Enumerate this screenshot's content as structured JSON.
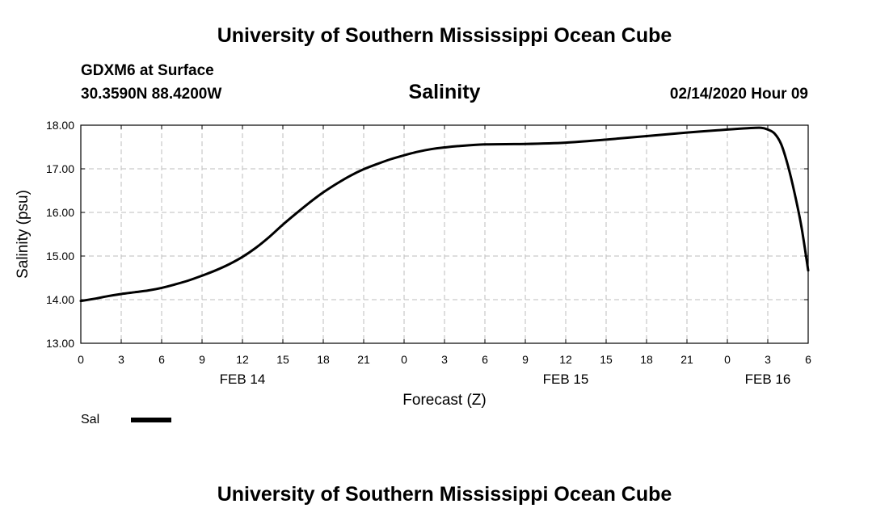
{
  "header": {
    "title": "University of Southern Mississippi Ocean Cube",
    "station": "GDXM6 at Surface",
    "coordinates": "30.3590N 88.4200W",
    "chart_title": "Salinity",
    "timestamp": "02/14/2020 Hour 09"
  },
  "footer": {
    "title": "University of Southern Mississippi Ocean Cube"
  },
  "colors": {
    "line": "#000000",
    "grid": "#bdbdbd",
    "background": "#ffffff"
  },
  "chart_data": {
    "type": "line",
    "title": "Salinity",
    "xlabel": "Forecast (Z)",
    "ylabel": "Salinity (psu)",
    "xlim": [
      0,
      54
    ],
    "ylim": [
      13,
      18
    ],
    "x_tick_values": [
      0,
      3,
      6,
      9,
      12,
      15,
      18,
      21,
      24,
      27,
      30,
      33,
      36,
      39,
      42,
      45,
      48,
      51,
      54
    ],
    "x_tick_labels": [
      "0",
      "3",
      "6",
      "9",
      "12",
      "15",
      "18",
      "21",
      "0",
      "3",
      "6",
      "9",
      "12",
      "15",
      "18",
      "21",
      "0",
      "3",
      "6"
    ],
    "y_tick_values": [
      13,
      14,
      15,
      16,
      17,
      18
    ],
    "y_tick_labels": [
      "13.00",
      "14.00",
      "15.00",
      "16.00",
      "17.00",
      "18.00"
    ],
    "date_labels": [
      {
        "x": 12,
        "label": "FEB 14"
      },
      {
        "x": 36,
        "label": "FEB 15"
      },
      {
        "x": 51,
        "label": "FEB 16"
      }
    ],
    "grid": true,
    "legend": {
      "placement": "bottom-left",
      "entries": [
        {
          "label": "Sal"
        }
      ]
    },
    "series": [
      {
        "name": "Sal",
        "x": [
          0,
          1,
          2,
          3,
          4,
          5,
          6,
          7,
          8,
          9,
          10,
          11,
          12,
          13,
          14,
          15,
          16,
          17,
          18,
          19,
          20,
          21,
          22,
          23,
          24,
          25,
          26,
          27,
          28,
          30,
          33,
          36,
          39,
          42,
          45,
          48,
          49.5,
          50.5,
          51,
          51.5,
          52,
          52.5,
          53,
          53.5,
          54
        ],
        "values": [
          13.97,
          14.02,
          14.08,
          14.13,
          14.17,
          14.21,
          14.27,
          14.35,
          14.44,
          14.55,
          14.67,
          14.81,
          14.98,
          15.19,
          15.44,
          15.72,
          15.98,
          16.23,
          16.46,
          16.66,
          16.84,
          16.99,
          17.11,
          17.22,
          17.31,
          17.39,
          17.45,
          17.49,
          17.52,
          17.56,
          17.57,
          17.6,
          17.67,
          17.75,
          17.83,
          17.9,
          17.93,
          17.94,
          17.9,
          17.81,
          17.56,
          17.07,
          16.43,
          15.67,
          14.67
        ]
      }
    ]
  }
}
